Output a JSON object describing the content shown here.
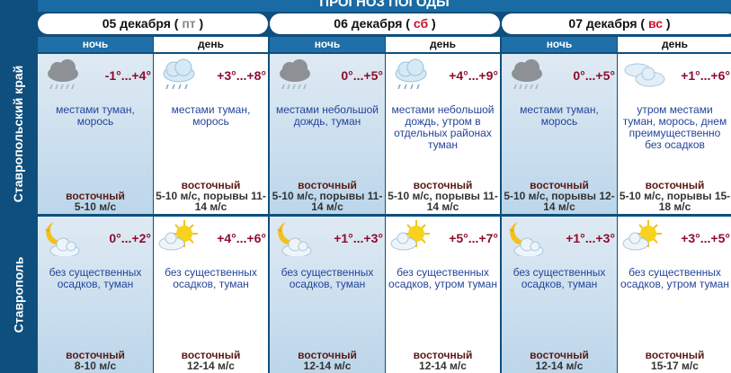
{
  "title": "ПРОГНОЗ ПОГОДЫ",
  "days": [
    {
      "date": "05 декабря",
      "weekday": "пт",
      "weekend": false
    },
    {
      "date": "06 декабря",
      "weekday": "сб",
      "weekend": true
    },
    {
      "date": "07 декабря",
      "weekday": "вс",
      "weekend": true
    }
  ],
  "periods": {
    "night": "ночь",
    "day": "день"
  },
  "colors": {
    "frame": "#0e4f7e",
    "temperature": "#8e0c2c",
    "description": "#24449a",
    "weekend": "#d0102a"
  },
  "rows": [
    {
      "region": "Ставропольский край",
      "cells": [
        {
          "icon": "cloud-rain-dark-icon",
          "temp": "-1°...+4°",
          "desc": "местами туман, морось",
          "wind": "восточный",
          "speed": "5-10 м/с"
        },
        {
          "icon": "cloud-rain-light-icon",
          "temp": "+3°...+8°",
          "desc": "местами туман, морось",
          "wind": "восточный",
          "speed": "5-10 м/с, порывы 11-14 м/с"
        },
        {
          "icon": "cloud-rain-dark-icon",
          "temp": "0°...+5°",
          "desc": "местами небольшой дождь, туман",
          "wind": "восточный",
          "speed": "5-10 м/с, порывы 11-14 м/с"
        },
        {
          "icon": "cloud-rain-light-icon",
          "temp": "+4°...+9°",
          "desc": "местами небольшой дождь, утром в отдельных районах туман",
          "wind": "восточный",
          "speed": "5-10 м/с, порывы 11-14 м/с"
        },
        {
          "icon": "cloud-rain-dark-icon",
          "temp": "0°...+5°",
          "desc": "местами туман, морось",
          "wind": "восточный",
          "speed": "5-10 м/с, порывы 12-14 м/с"
        },
        {
          "icon": "clouds-icon",
          "temp": "+1°...+6°",
          "desc": "утром местами туман, морось, днем преимущественно без осадков",
          "wind": "восточный",
          "speed": "5-10 м/с, порывы 15-18 м/с"
        }
      ]
    },
    {
      "region": "Ставрополь",
      "cells": [
        {
          "icon": "moon-cloud-icon",
          "temp": "0°...+2°",
          "desc": "без существенных осадков, туман",
          "wind": "восточный",
          "speed": "8-10 м/с"
        },
        {
          "icon": "sun-cloud-icon",
          "temp": "+4°...+6°",
          "desc": "без существенных осадков, туман",
          "wind": "восточный",
          "speed": "12-14 м/с"
        },
        {
          "icon": "moon-cloud-icon",
          "temp": "+1°...+3°",
          "desc": "без существенных осадков, туман",
          "wind": "восточный",
          "speed": "12-14 м/с"
        },
        {
          "icon": "sun-cloud-icon",
          "temp": "+5°...+7°",
          "desc": "без существенных осадков, утром туман",
          "wind": "восточный",
          "speed": "12-14 м/с"
        },
        {
          "icon": "moon-cloud-icon",
          "temp": "+1°...+3°",
          "desc": "без существенных осадков, туман",
          "wind": "восточный",
          "speed": "12-14 м/с"
        },
        {
          "icon": "sun-cloud-icon",
          "temp": "+3°...+5°",
          "desc": "без существенных осадков, утром туман",
          "wind": "восточный",
          "speed": "15-17 м/с"
        }
      ]
    }
  ]
}
